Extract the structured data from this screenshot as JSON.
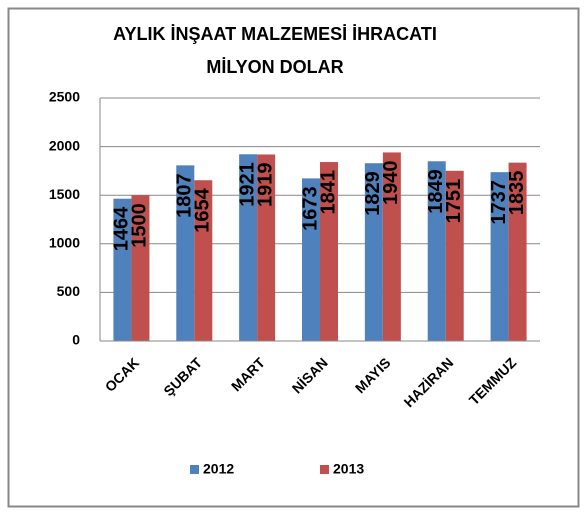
{
  "chart_data": {
    "type": "bar",
    "title": [
      "AYLIK İNŞAAT MALZEMESİ İHRACATI",
      "MİLYON DOLAR"
    ],
    "categories": [
      "OCAK",
      "ŞUBAT",
      "MART",
      "NİSAN",
      "MAYIS",
      "HAZİRAN",
      "TEMMUZ"
    ],
    "series": [
      {
        "name": "2012",
        "color": "#4f81bd",
        "values": [
          1464,
          1807,
          1921,
          1673,
          1829,
          1849,
          1737
        ]
      },
      {
        "name": "2013",
        "color": "#c0504d",
        "values": [
          1500,
          1654,
          1919,
          1841,
          1940,
          1751,
          1835
        ]
      }
    ],
    "ylim": [
      0,
      2500
    ],
    "yticks": [
      0,
      500,
      1000,
      1500,
      2000,
      2500
    ],
    "grid": true,
    "legend": "bottom"
  }
}
